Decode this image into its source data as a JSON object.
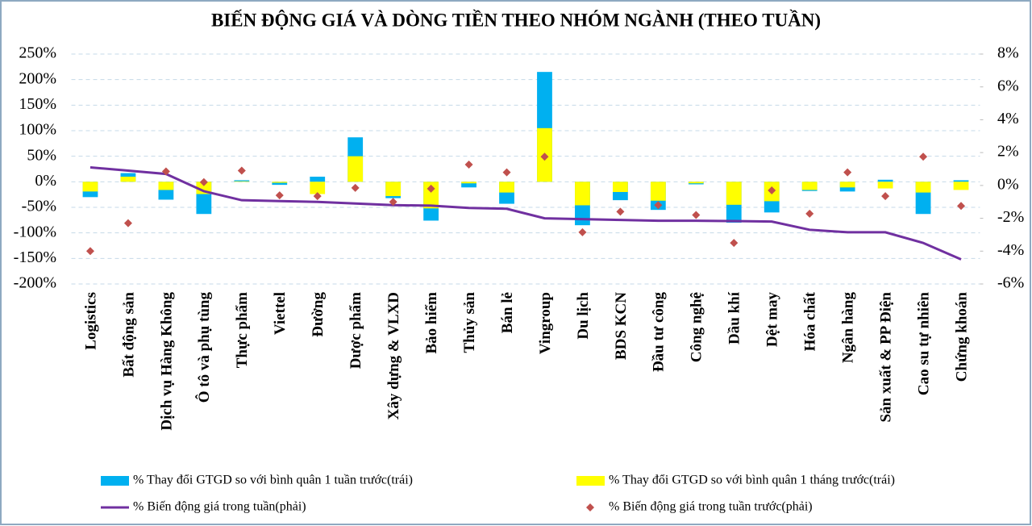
{
  "chart_data": {
    "type": "bar",
    "title": "BIẾN ĐỘNG GIÁ VÀ DÒNG TIỀN THEO NHÓM NGÀNH (THEO TUẦN)",
    "categories": [
      "Logistics",
      "Bất động sản",
      "Dịch vụ Hàng Không",
      "Ô tô và phụ tùng",
      "Thực phẩm",
      "Viettel",
      "Đường",
      "Dược phẩm",
      "Xây dựng & VLXD",
      "Bảo hiểm",
      "Thủy sản",
      "Bán lẻ",
      "Vingroup",
      "Du lịch",
      "BDS KCN",
      "Đầu tư công",
      "Công nghệ",
      "Dầu khí",
      "Dệt may",
      "Hóa chất",
      "Ngân hàng",
      "Sản xuất & PP Điện",
      "Cao su tự nhiên",
      "Chứng khoán"
    ],
    "series": [
      {
        "name": "% Thay đổi GTGD so với bình quân 1 tuần trước(trái)",
        "type": "bar",
        "color": "#00b0f0",
        "values": [
          -30,
          17,
          -35,
          -63,
          3,
          -6,
          10,
          87,
          -32,
          -76,
          -11,
          -43,
          215,
          -85,
          -36,
          -55,
          -5,
          -80,
          -60,
          -18,
          -19,
          4,
          -63,
          3
        ]
      },
      {
        "name": "% Thay đổi GTGD so với bình quân 1 tháng trước(trái)",
        "type": "bar",
        "color": "#ffff00",
        "values": [
          -19,
          10,
          -16,
          -24,
          1,
          -2,
          -24,
          50,
          -28,
          -52,
          -3,
          -21,
          105,
          -46,
          -20,
          -37,
          -3,
          -45,
          -38,
          -16,
          -11,
          -13,
          -21,
          -16
        ]
      },
      {
        "name": "% Biến động giá trong tuần(phải)",
        "type": "line",
        "axis": "y2",
        "color": "#7030a0",
        "values": [
          1.1,
          0.9,
          0.7,
          -0.35,
          -0.9,
          -0.95,
          -1.0,
          -1.1,
          -1.2,
          -1.23,
          -1.37,
          -1.42,
          -2.0,
          -2.05,
          -2.1,
          -2.15,
          -2.15,
          -2.17,
          -2.2,
          -2.7,
          -2.85,
          -2.85,
          -3.5,
          -4.5
        ]
      },
      {
        "name": "% Biến động giá trong tuần trước(phải)",
        "type": "scatter",
        "axis": "y2",
        "color": "#c0504d",
        "values": [
          -4.0,
          -2.3,
          0.85,
          0.2,
          0.9,
          -0.6,
          -0.65,
          -0.15,
          -1.0,
          -0.2,
          1.27,
          0.8,
          1.75,
          -2.85,
          -1.6,
          -1.2,
          -1.8,
          -3.5,
          -0.3,
          -1.72,
          0.8,
          -0.65,
          1.75,
          -1.25
        ]
      }
    ],
    "ylim": [
      -200,
      250
    ],
    "yticks": [
      {
        "value": -200,
        "label": "-200%"
      },
      {
        "value": -150,
        "label": "-150%"
      },
      {
        "value": -100,
        "label": "-100%"
      },
      {
        "value": -50,
        "label": "-50%"
      },
      {
        "value": 0,
        "label": "0%"
      },
      {
        "value": 50,
        "label": "50%"
      },
      {
        "value": 100,
        "label": "100%"
      },
      {
        "value": 150,
        "label": "150%"
      },
      {
        "value": 200,
        "label": "200%"
      },
      {
        "value": 250,
        "label": "250%"
      }
    ],
    "y2lim": [
      -6,
      8
    ],
    "y2ticks": [
      {
        "value": -6,
        "label": "-6%"
      },
      {
        "value": -4,
        "label": "-4%"
      },
      {
        "value": -2,
        "label": "-2%"
      },
      {
        "value": 0,
        "label": "0%"
      },
      {
        "value": 2,
        "label": "2%"
      },
      {
        "value": 4,
        "label": "4%"
      },
      {
        "value": 6,
        "label": "6%"
      },
      {
        "value": 8,
        "label": "8%"
      }
    ],
    "grid": true
  }
}
